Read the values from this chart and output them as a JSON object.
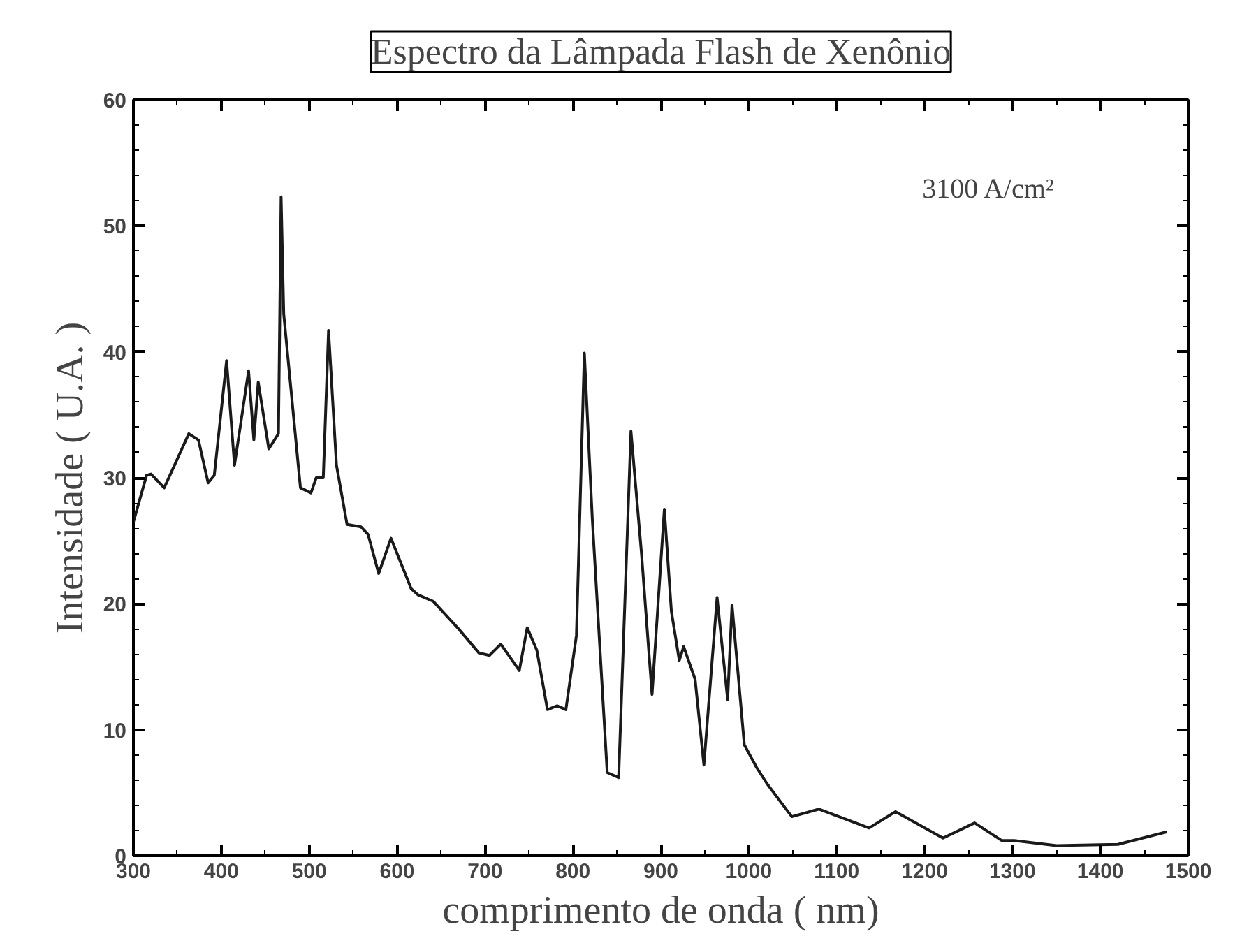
{
  "chart_data": {
    "type": "line",
    "title": "Espectro da Lâmpada Flash de Xenônio",
    "xlabel": "comprimento de onda ( nm)",
    "ylabel": "Intensidade ( U.A. )",
    "annotations": [
      "3100 A/cm²"
    ],
    "x": [
      300,
      315,
      320,
      335,
      363,
      374,
      385,
      392,
      406,
      415,
      431,
      437,
      442,
      454,
      465,
      468,
      471,
      490,
      502,
      508,
      516,
      522,
      531,
      543,
      559,
      567,
      579,
      593,
      616,
      624,
      641,
      670,
      693,
      705,
      718,
      739,
      748,
      759,
      771,
      782,
      792,
      804,
      813,
      822,
      839,
      852,
      866,
      878,
      890,
      904,
      912,
      921,
      926,
      939,
      949,
      964,
      976,
      981,
      995,
      1009,
      1021,
      1049,
      1080,
      1137,
      1167,
      1221,
      1257,
      1288,
      1302,
      1350,
      1420,
      1476
    ],
    "series": [
      {
        "color": "#1a1a1a",
        "values": [
          26.5,
          30.2,
          30.3,
          29.2,
          33.5,
          33,
          29.6,
          30.2,
          39.3,
          31,
          38.5,
          33,
          37.6,
          32.3,
          33.5,
          52.3,
          43,
          29.2,
          28.8,
          30,
          30,
          41.7,
          31,
          26.3,
          26.1,
          25.5,
          22.4,
          25.2,
          21.2,
          20.7,
          20.2,
          18,
          16.1,
          15.9,
          16.8,
          14.7,
          18.1,
          16.3,
          11.6,
          11.9,
          11.6,
          17.5,
          39.9,
          26.8,
          6.6,
          6.2,
          33.7,
          24,
          12.8,
          27.5,
          19.4,
          15.5,
          16.6,
          14,
          7.2,
          20.5,
          12.4,
          19.9,
          8.8,
          7,
          5.7,
          3.1,
          3.7,
          2.2,
          3.5,
          1.4,
          2.6,
          1.2,
          1.2,
          0.8,
          0.9,
          1.9
        ]
      }
    ],
    "xlim": [
      300,
      1500
    ],
    "ylim": [
      0,
      60
    ],
    "xticks": [
      300,
      400,
      500,
      600,
      700,
      800,
      900,
      1000,
      1100,
      1200,
      1300,
      1400,
      1500
    ],
    "yticks": [
      0,
      10,
      20,
      30,
      40,
      50,
      60
    ],
    "grid": false,
    "marker": "none",
    "line_style": "solid"
  }
}
